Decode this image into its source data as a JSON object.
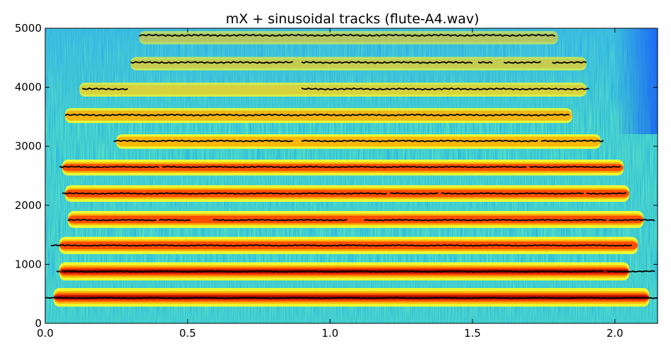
{
  "chart_data": {
    "type": "heatmap",
    "title": "mX + sinusoidal tracks (flute-A4.wav)",
    "xlabel": "",
    "ylabel": "",
    "xlim": [
      0.0,
      2.15
    ],
    "ylim": [
      0,
      5000
    ],
    "x_ticks": [
      0.0,
      0.5,
      1.0,
      1.5,
      2.0
    ],
    "x_tick_labels": [
      "0.0",
      "0.5",
      "1.0",
      "1.5",
      "2.0"
    ],
    "y_ticks": [
      0,
      1000,
      2000,
      3000,
      4000,
      5000
    ],
    "y_tick_labels": [
      "0",
      "1000",
      "2000",
      "3000",
      "4000",
      "5000"
    ],
    "colormap": "jet",
    "background_color": "#ffffff",
    "track_color": "#000000",
    "harmonic_bands": [
      {
        "freq": 440,
        "start": 0.03,
        "end": 2.12,
        "intensity": 1.0
      },
      {
        "freq": 880,
        "start": 0.05,
        "end": 2.05,
        "intensity": 0.95
      },
      {
        "freq": 1320,
        "start": 0.05,
        "end": 2.08,
        "intensity": 0.85
      },
      {
        "freq": 1760,
        "start": 0.08,
        "end": 2.1,
        "intensity": 0.82
      },
      {
        "freq": 2200,
        "start": 0.07,
        "end": 2.05,
        "intensity": 0.78
      },
      {
        "freq": 2640,
        "start": 0.06,
        "end": 2.03,
        "intensity": 0.7
      },
      {
        "freq": 3080,
        "start": 0.25,
        "end": 1.95,
        "intensity": 0.55
      },
      {
        "freq": 3520,
        "start": 0.07,
        "end": 1.85,
        "intensity": 0.6
      },
      {
        "freq": 3960,
        "start": 0.12,
        "end": 1.9,
        "intensity": 0.5
      },
      {
        "freq": 4400,
        "start": 0.3,
        "end": 1.9,
        "intensity": 0.45
      },
      {
        "freq": 4840,
        "start": 0.33,
        "end": 1.8,
        "intensity": 0.42
      }
    ],
    "tracks": [
      {
        "freq": 430,
        "segments": [
          [
            0.0,
            2.15
          ]
        ]
      },
      {
        "freq": 880,
        "segments": [
          [
            0.04,
            0.05
          ],
          [
            0.06,
            1.96
          ],
          [
            1.97,
            2.14
          ]
        ]
      },
      {
        "freq": 1320,
        "segments": [
          [
            0.02,
            2.06
          ]
        ]
      },
      {
        "freq": 1750,
        "segments": [
          [
            0.08,
            0.39
          ],
          [
            0.4,
            0.51
          ],
          [
            0.59,
            1.06
          ],
          [
            1.12,
            1.97
          ],
          [
            1.98,
            2.14
          ]
        ]
      },
      {
        "freq": 2200,
        "segments": [
          [
            0.06,
            1.2
          ],
          [
            1.21,
            1.38
          ],
          [
            1.39,
            1.89
          ],
          [
            1.9,
            2.04
          ]
        ]
      },
      {
        "freq": 2650,
        "segments": [
          [
            0.05,
            0.4
          ],
          [
            0.41,
            1.69
          ],
          [
            1.7,
            2.02
          ]
        ]
      },
      {
        "freq": 3090,
        "segments": [
          [
            0.24,
            0.87
          ],
          [
            0.9,
            1.73
          ],
          [
            1.74,
            1.96
          ]
        ]
      },
      {
        "freq": 3530,
        "segments": [
          [
            0.07,
            1.84
          ]
        ]
      },
      {
        "freq": 3970,
        "segments": [
          [
            0.13,
            0.29
          ],
          [
            0.9,
            1.91
          ]
        ]
      },
      {
        "freq": 4420,
        "segments": [
          [
            0.3,
            0.87
          ],
          [
            0.9,
            1.5
          ],
          [
            1.52,
            1.57
          ],
          [
            1.61,
            1.74
          ],
          [
            1.78,
            1.9
          ]
        ]
      },
      {
        "freq": 4880,
        "segments": [
          [
            0.33,
            1.79
          ]
        ]
      }
    ]
  }
}
